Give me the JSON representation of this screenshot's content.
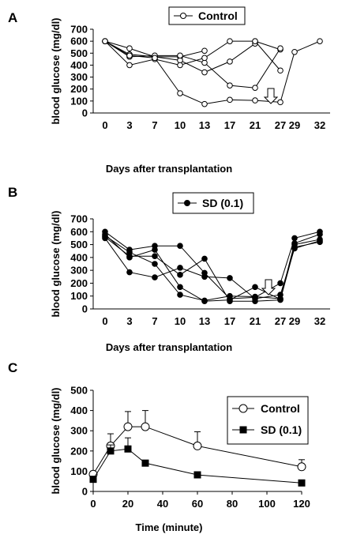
{
  "chart_data": [
    {
      "panel_label": "A",
      "type": "line",
      "xlabel": "Days after transplantation",
      "ylabel": "blood glucose (mg/dl)",
      "x_ticks": [
        "0",
        "3",
        "7",
        "10",
        "13",
        "17",
        "21",
        "27",
        "29",
        "32"
      ],
      "ylim": [
        0,
        700
      ],
      "y_ticks": [
        0,
        100,
        200,
        300,
        400,
        500,
        600,
        700
      ],
      "legend": {
        "label": "Control",
        "marker": "open-circle",
        "position": "top-center"
      },
      "arrow_at_day": "27",
      "series": [
        {
          "values": [
            600,
            540,
            470,
            470,
            520,
            null,
            600,
            530,
            null,
            null
          ]
        },
        {
          "values": [
            600,
            490,
            470,
            440,
            340,
            430,
            580,
            null,
            null,
            null
          ]
        },
        {
          "values": [
            600,
            470,
            480,
            480,
            420,
            230,
            210,
            540,
            null,
            null
          ]
        },
        {
          "values": [
            600,
            400,
            450,
            400,
            460,
            600,
            600,
            355,
            null,
            null
          ]
        },
        {
          "values": [
            600,
            480,
            460,
            165,
            75,
            110,
            105,
            90,
            510,
            600
          ]
        }
      ]
    },
    {
      "panel_label": "B",
      "type": "line",
      "xlabel": "Days after transplantation",
      "ylabel": "blood glucose (mg/dl)",
      "x_ticks": [
        "0",
        "3",
        "7",
        "10",
        "13",
        "17",
        "21",
        "27",
        "29",
        "32"
      ],
      "ylim": [
        0,
        700
      ],
      "y_ticks": [
        0,
        100,
        200,
        300,
        400,
        500,
        600,
        700
      ],
      "legend": {
        "label": "SD (0.1)",
        "marker": "filled-circle",
        "position": "top-center"
      },
      "arrow_at_day": "27",
      "series": [
        {
          "values": [
            600,
            460,
            490,
            490,
            280,
            80,
            90,
            200,
            550,
            600
          ]
        },
        {
          "values": [
            580,
            400,
            460,
            170,
            60,
            70,
            170,
            75,
            500,
            540
          ]
        },
        {
          "values": [
            560,
            410,
            410,
            265,
            390,
            60,
            60,
            70,
            480,
            520
          ]
        },
        {
          "values": [
            550,
            285,
            245,
            320,
            250,
            240,
            80,
            110,
            470,
            530
          ]
        },
        {
          "values": [
            570,
            440,
            350,
            110,
            65,
            100,
            95,
            80,
            510,
            580
          ]
        }
      ]
    },
    {
      "panel_label": "C",
      "type": "line",
      "xlabel": "Time (minute)",
      "ylabel": "blood glucose (mg/dl)",
      "xlim": [
        0,
        120
      ],
      "x_ticks": [
        0,
        20,
        40,
        60,
        80,
        100,
        120
      ],
      "ylim": [
        0,
        500
      ],
      "y_ticks": [
        0,
        100,
        200,
        300,
        400,
        500
      ],
      "legend_position": "right",
      "series": [
        {
          "name": "Control",
          "marker": "open-circle",
          "x": [
            0,
            10,
            20,
            30,
            60,
            120
          ],
          "y": [
            85,
            225,
            320,
            320,
            225,
            122
          ],
          "error": [
            0,
            60,
            75,
            80,
            70,
            35
          ]
        },
        {
          "name": "SD (0.1)",
          "marker": "filled-square",
          "x": [
            0,
            10,
            20,
            30,
            60,
            120
          ],
          "y": [
            60,
            200,
            210,
            140,
            82,
            42
          ],
          "error": [
            0,
            30,
            55,
            0,
            0,
            0
          ]
        }
      ]
    }
  ]
}
